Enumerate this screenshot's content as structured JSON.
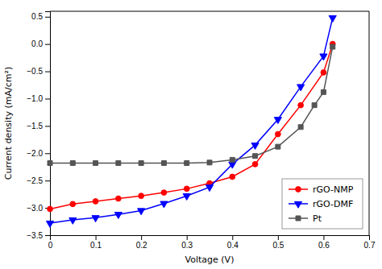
{
  "chart_data": {
    "type": "line",
    "xlabel": "Voltage (V)",
    "ylabel": "Current density (mA/cm²)",
    "xlim": [
      0,
      0.7
    ],
    "ylim": [
      -3.5,
      0.6
    ],
    "xticks": [
      0,
      0.1,
      0.2,
      0.3,
      0.4,
      0.5,
      0.6,
      0.7
    ],
    "yticks": [
      {
        "value": -3.5,
        "label": "−3.5"
      },
      {
        "value": -3.0,
        "label": "−3.0"
      },
      {
        "value": -2.5,
        "label": "−2.5"
      },
      {
        "value": -2.0,
        "label": "−2.0"
      },
      {
        "value": -1.5,
        "label": "−1.5"
      },
      {
        "value": -1.0,
        "label": "−1.0"
      },
      {
        "value": -0.5,
        "label": "−0.5"
      },
      {
        "value": 0.0,
        "label": "0.0"
      },
      0.5
    ],
    "grid": false,
    "legend": "lower right",
    "series": [
      {
        "name": "rGO-NMP",
        "color": "#ff0000",
        "marker": "circle",
        "x": [
          0.0,
          0.05,
          0.1,
          0.15,
          0.2,
          0.25,
          0.3,
          0.35,
          0.4,
          0.45,
          0.5,
          0.55,
          0.6,
          0.62
        ],
        "values": [
          -3.02,
          -2.93,
          -2.88,
          -2.83,
          -2.78,
          -2.72,
          -2.65,
          -2.55,
          -2.43,
          -2.2,
          -1.65,
          -1.12,
          -0.52,
          0.0
        ]
      },
      {
        "name": "rGO-DMF",
        "color": "#0000ff",
        "marker": "triangle-down",
        "x": [
          0.0,
          0.05,
          0.1,
          0.15,
          0.2,
          0.25,
          0.3,
          0.35,
          0.4,
          0.45,
          0.5,
          0.55,
          0.6,
          0.62
        ],
        "values": [
          -3.28,
          -3.22,
          -3.18,
          -3.12,
          -3.05,
          -2.92,
          -2.78,
          -2.62,
          -2.2,
          -1.85,
          -1.38,
          -0.78,
          -0.22,
          0.48
        ]
      },
      {
        "name": "Pt",
        "color": "#555555",
        "marker": "square",
        "x": [
          0.0,
          0.05,
          0.1,
          0.15,
          0.2,
          0.25,
          0.3,
          0.35,
          0.4,
          0.45,
          0.5,
          0.55,
          0.58,
          0.6,
          0.62
        ],
        "values": [
          -2.18,
          -2.18,
          -2.18,
          -2.18,
          -2.18,
          -2.18,
          -2.18,
          -2.17,
          -2.12,
          -2.05,
          -1.88,
          -1.52,
          -1.12,
          -0.88,
          -0.05
        ]
      }
    ]
  }
}
